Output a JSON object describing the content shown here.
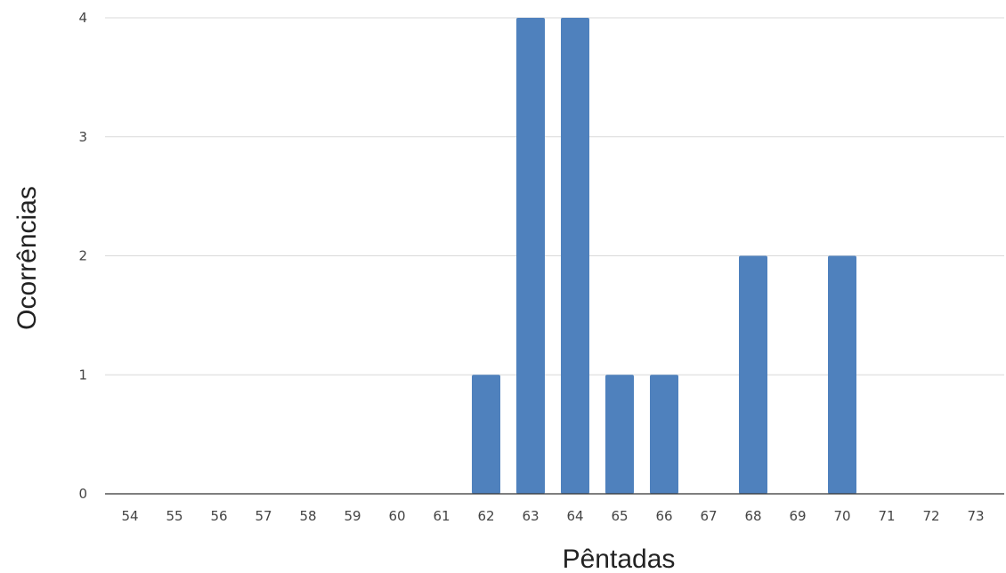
{
  "chart_data": {
    "type": "bar",
    "title": "",
    "xlabel": "Pêntadas",
    "ylabel": "Ocorrências",
    "categories": [
      "54",
      "55",
      "56",
      "57",
      "58",
      "59",
      "60",
      "61",
      "62",
      "63",
      "64",
      "65",
      "66",
      "67",
      "68",
      "69",
      "70",
      "71",
      "72",
      "73"
    ],
    "values": [
      0,
      0,
      0,
      0,
      0,
      0,
      0,
      0,
      1,
      4,
      4,
      1,
      1,
      0,
      2,
      0,
      2,
      0,
      0,
      0
    ],
    "yticks": [
      "0",
      "1",
      "2",
      "3",
      "4"
    ],
    "ylim": [
      0,
      4
    ],
    "grid": true,
    "legend": "none",
    "colors": {
      "bar": "#4f81bd",
      "grid": "#d9d9d9",
      "baseline": "#333333"
    }
  }
}
